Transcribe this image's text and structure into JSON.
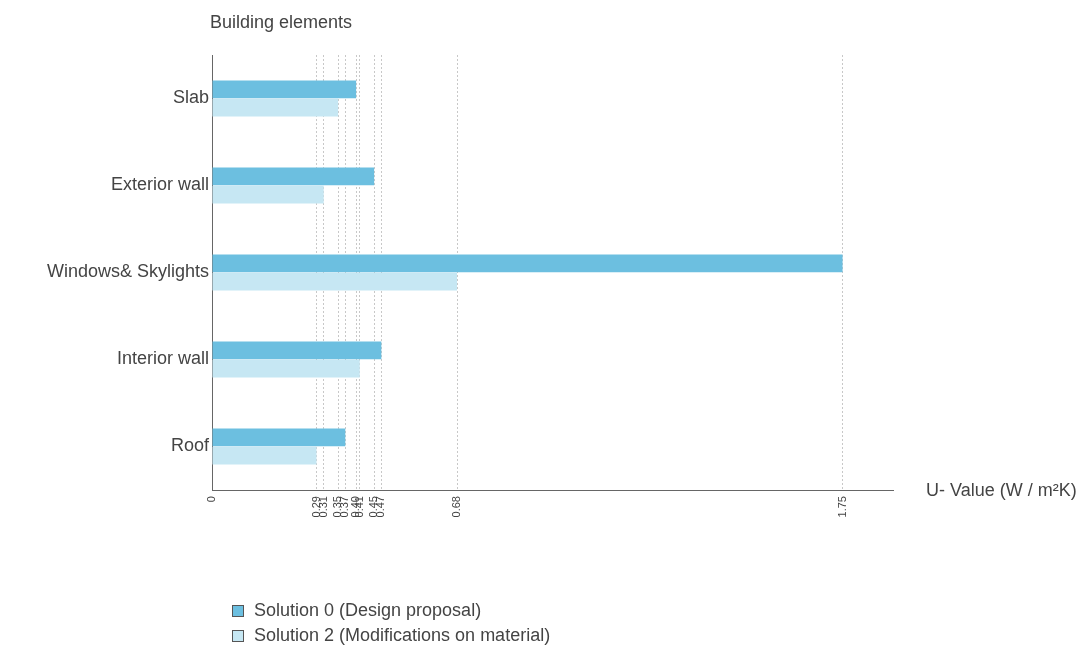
{
  "chart_data": {
    "type": "bar",
    "orientation": "horizontal",
    "ylabel": "Building elements",
    "xlabel": "U- Value (W / m²K)",
    "categories": [
      "Slab",
      "Exterior wall",
      "Windows& Skylights",
      "Interior wall",
      "Roof"
    ],
    "series": [
      {
        "name": "Solution 0 (Design proposal)",
        "color": "#6cbfe0",
        "values": [
          0.4,
          0.45,
          1.75,
          0.47,
          0.37
        ]
      },
      {
        "name": "Solution 2 (Modifications on material)",
        "color": "#c6e7f3",
        "values": [
          0.35,
          0.31,
          0.68,
          0.41,
          0.29
        ]
      }
    ],
    "xlim": [
      0,
      1.89
    ],
    "xticks": [
      0,
      0.29,
      0.31,
      0.35,
      0.37,
      {
        "value": 0.4,
        "label": "0.40"
      },
      0.41,
      0.45,
      0.47,
      0.68,
      1.75
    ],
    "grid": "x",
    "legend": "bottom left"
  }
}
